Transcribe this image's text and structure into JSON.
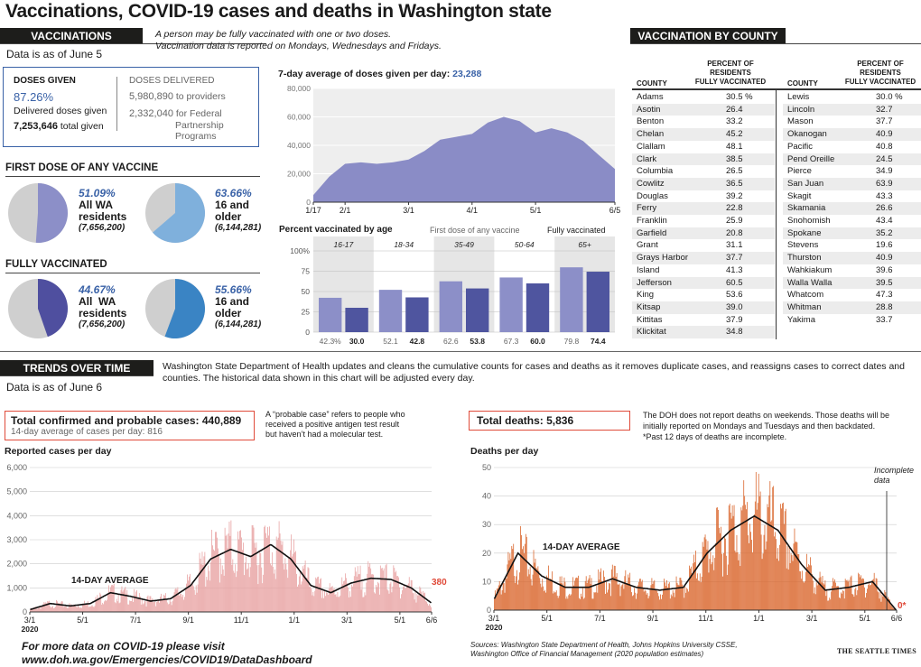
{
  "title": "Vaccinations, COVID-19 cases and deaths in Washington state",
  "vaccinations": {
    "header": "VACCINATIONS",
    "note_line1": "A person may be fully vaccinated with one or two doses.",
    "note_line2": "Vaccination data is reported on Mondays, Wednesdays and Fridays.",
    "as_of": "Data is as of June 5",
    "doses_given_label": "DOSES GIVEN",
    "doses_given_pct": "87.26%",
    "doses_given_pct_text": "Delivered doses given",
    "doses_given_total": "7,253,646",
    "doses_given_total_text": "total given",
    "doses_delivered_label": "DOSES DELIVERED",
    "delivered_providers": "5,980,890",
    "delivered_providers_text": "to providers",
    "delivered_federal": "2,332,040",
    "delivered_federal_text_1": "for Federal",
    "delivered_federal_text_2": "Partnership",
    "delivered_federal_text_3": "Programs",
    "first_dose_header": "FIRST DOSE OF ANY VACCINE",
    "fully_header": "FULLY VACCINATED",
    "pies": [
      {
        "pct": "51.09%",
        "value": 51.09,
        "line1": "All WA",
        "line2": "residents",
        "pop": "(7,656,200)",
        "color": "#8c8fc8"
      },
      {
        "pct": "63.66%",
        "value": 63.66,
        "line1": "16 and",
        "line2": "older",
        "pop": "(6,144,281)",
        "color": "#7fb0dc"
      },
      {
        "pct": "44.67%",
        "value": 44.67,
        "line1": "All  WA",
        "line2": "residents",
        "pop": "(7,656,200)",
        "color": "#4f4f9f"
      },
      {
        "pct": "55.66%",
        "value": 55.66,
        "line1": "16 and",
        "line2": "older",
        "pop": "(6,144,281)",
        "color": "#3a84c4"
      }
    ]
  },
  "doses_chart": {
    "title": "7-day average of doses given per day:",
    "title_value": "23,288",
    "y_ticks": [
      "0",
      "20,000",
      "40,000",
      "60,000",
      "80,000"
    ],
    "x_ticks": [
      "1/17",
      "2/1",
      "3/1",
      "4/1",
      "5/1",
      "6/5"
    ],
    "color": "#8a8cc6"
  },
  "age_chart": {
    "title": "Percent vaccinated by age",
    "legend_first": "First dose of any vaccine",
    "legend_full": "Fully vaccinated",
    "y_ticks": [
      "0",
      "25",
      "50",
      "75",
      "100%"
    ],
    "groups": [
      "16-17",
      "18-34",
      "35-49",
      "50-64",
      "65+"
    ],
    "first_labels": [
      "42.3%",
      "52.1",
      "62.6",
      "67.3",
      "79.8"
    ],
    "full_labels": [
      "30.0",
      "42.8",
      "53.8",
      "60.0",
      "74.4"
    ],
    "color_first": "#8c8fc8",
    "color_full": "#4f559f"
  },
  "county": {
    "header": "VACCINATION BY COUNTY",
    "col_county": "COUNTY",
    "col_pct_1": "PERCENT OF",
    "col_pct_2": "RESIDENTS",
    "col_pct_3": "FULLY VACCINATED",
    "left": [
      [
        "Adams",
        "30.5 %"
      ],
      [
        "Asotin",
        "26.4"
      ],
      [
        "Benton",
        "33.2"
      ],
      [
        "Chelan",
        "45.2"
      ],
      [
        "Clallam",
        "48.1"
      ],
      [
        "Clark",
        "38.5"
      ],
      [
        "Columbia",
        "26.5"
      ],
      [
        "Cowlitz",
        "36.5"
      ],
      [
        "Douglas",
        "39.2"
      ],
      [
        "Ferry",
        "22.8"
      ],
      [
        "Franklin",
        "25.9"
      ],
      [
        "Garfield",
        "20.8"
      ],
      [
        "Grant",
        "31.1"
      ],
      [
        "Grays Harbor",
        "37.7"
      ],
      [
        "Island",
        "41.3"
      ],
      [
        "Jefferson",
        "60.5"
      ],
      [
        "King",
        "53.6"
      ],
      [
        "Kitsap",
        "39.0"
      ],
      [
        "Kittitas",
        "37.9"
      ],
      [
        "Klickitat",
        "34.8"
      ]
    ],
    "right": [
      [
        "Lewis",
        "30.0 %"
      ],
      [
        "Lincoln",
        "32.7"
      ],
      [
        "Mason",
        "37.7"
      ],
      [
        "Okanogan",
        "40.9"
      ],
      [
        "Pacific",
        "40.8"
      ],
      [
        "Pend Oreille",
        "24.5"
      ],
      [
        "Pierce",
        "34.9"
      ],
      [
        "San Juan",
        "63.9"
      ],
      [
        "Skagit",
        "43.3"
      ],
      [
        "Skamania",
        "26.6"
      ],
      [
        "Snohomish",
        "43.4"
      ],
      [
        "Spokane",
        "35.2"
      ],
      [
        "Stevens",
        "19.6"
      ],
      [
        "Thurston",
        "40.9"
      ],
      [
        "Wahkiakum",
        "39.6"
      ],
      [
        "Walla Walla",
        "39.5"
      ],
      [
        "Whatcom",
        "47.3"
      ],
      [
        "Whitman",
        "28.8"
      ],
      [
        "Yakima",
        "33.7"
      ]
    ]
  },
  "trends": {
    "header": "TRENDS OVER TIME",
    "note": "Washington State Department of Health updates and cleans the cumulative counts for cases and deaths as it removes duplicate cases, and reassigns cases to correct dates and counties. The historical data shown in this chart will be adjusted every day.",
    "as_of": "Data is as of June 6"
  },
  "cases": {
    "total_label": "Total confirmed and probable cases:",
    "total_value": "440,889",
    "avg_line": "14-day average of cases per day: 816",
    "probable_note_1": "A “probable case” refers to people who",
    "probable_note_2": "received a positive antigen test result",
    "probable_note_3": "but haven’t had a molecular test.",
    "chart_title": "Reported cases per day",
    "avg_label": "14-DAY AVERAGE",
    "last_value": "380",
    "y_ticks": [
      "0",
      "1,000",
      "2,000",
      "3,000",
      "4,000",
      "5,000",
      "6,000"
    ],
    "x_ticks": [
      "3/1",
      "5/1",
      "7/1",
      "9/1",
      "11/1",
      "1/1",
      "3/1",
      "5/1",
      "6/6"
    ],
    "year_label": "2020",
    "bar_color": "#e8a2a2",
    "accent": "#e04b3a"
  },
  "deaths": {
    "total_label": "Total deaths:",
    "total_value": "5,836",
    "note_1": "The DOH does not report deaths on weekends. Those deaths will be",
    "note_2": "initially reported on Mondays and Tuesdays and then backdated.",
    "note_3": "*Past 12 days of deaths are incomplete.",
    "chart_title": "Deaths per day",
    "avg_label": "14-DAY AVERAGE",
    "incomplete_1": "Incomplete",
    "incomplete_2": "data",
    "last_value": "0*",
    "y_ticks": [
      "0",
      "10",
      "20",
      "30",
      "40",
      "50"
    ],
    "x_ticks": [
      "3/1",
      "5/1",
      "7/1",
      "9/1",
      "11/1",
      "1/1",
      "3/1",
      "5/1",
      "6/6"
    ],
    "year_label": "2020",
    "bar_color": "#d9642a"
  },
  "footer": {
    "more_1": "For more data on COVID-19 please visit",
    "more_2": "www.doh.wa.gov/Emergencies/COVID19/DataDashboard",
    "sources_1": "Sources: Washington State Department of Health, Johns Hopkins University CSSE,",
    "sources_2": "Washington Office of Financial Management (2020 population estimates)",
    "credit": "THE SEATTLE TIMES"
  },
  "chart_data": [
    {
      "type": "area",
      "title": "7-day average of doses given per day: 23,288",
      "x": [
        "1/17",
        "1/24",
        "2/1",
        "2/8",
        "2/15",
        "2/22",
        "3/1",
        "3/8",
        "3/15",
        "3/22",
        "4/1",
        "4/8",
        "4/15",
        "4/22",
        "5/1",
        "5/8",
        "5/15",
        "5/22",
        "6/1",
        "6/5"
      ],
      "values": [
        5000,
        18000,
        27000,
        28000,
        27000,
        28000,
        30000,
        36000,
        44000,
        46000,
        48000,
        56000,
        60000,
        57000,
        49000,
        52000,
        49000,
        43000,
        33000,
        23288
      ],
      "ylim": [
        0,
        80000
      ]
    },
    {
      "type": "bar",
      "title": "Percent vaccinated by age",
      "categories": [
        "16-17",
        "18-34",
        "35-49",
        "50-64",
        "65+"
      ],
      "series": [
        {
          "name": "First dose of any vaccine",
          "values": [
            42.3,
            52.1,
            62.6,
            67.3,
            79.8
          ]
        },
        {
          "name": "Fully vaccinated",
          "values": [
            30.0,
            42.8,
            53.8,
            60.0,
            74.4
          ]
        }
      ],
      "ylim": [
        0,
        100
      ]
    },
    {
      "type": "bar",
      "title": "Reported cases per day",
      "x": [
        "3/1",
        "4/1",
        "5/1",
        "6/1",
        "7/1",
        "8/1",
        "9/1",
        "10/1",
        "11/1",
        "11/15",
        "12/1",
        "12/15",
        "1/1",
        "1/15",
        "2/1",
        "3/1",
        "4/1",
        "4/15",
        "5/1",
        "5/15",
        "6/6"
      ],
      "values": [
        100,
        350,
        250,
        350,
        800,
        650,
        450,
        550,
        1100,
        2200,
        2600,
        2300,
        2800,
        2200,
        1100,
        800,
        1200,
        1400,
        1350,
        1000,
        380
      ],
      "ylim": [
        0,
        6000
      ]
    },
    {
      "type": "bar",
      "title": "Deaths per day",
      "x": [
        "3/1",
        "4/1",
        "5/1",
        "6/1",
        "7/1",
        "8/1",
        "9/1",
        "10/1",
        "11/1",
        "12/1",
        "12/15",
        "1/1",
        "1/15",
        "2/1",
        "3/1",
        "4/1",
        "5/1",
        "6/6"
      ],
      "values": [
        4,
        20,
        12,
        8,
        8,
        11,
        8,
        7,
        8,
        20,
        28,
        33,
        28,
        16,
        7,
        8,
        10,
        0
      ],
      "ylim": [
        0,
        50
      ]
    }
  ]
}
